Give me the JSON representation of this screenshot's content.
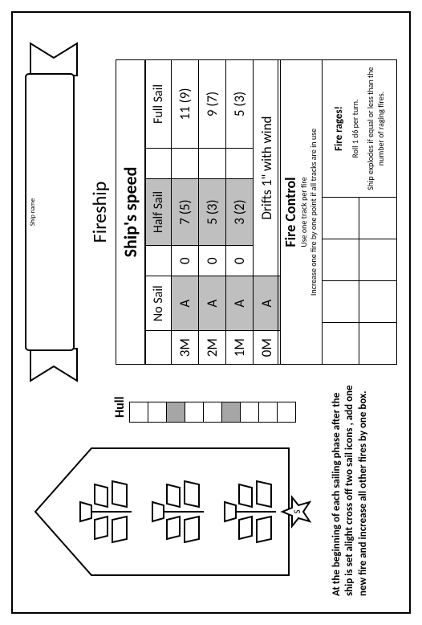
{
  "banner": {
    "field_label": "Ship name",
    "ship_type": "Fireship"
  },
  "hull": {
    "label": "Hull",
    "cells": 9,
    "shaded_indices": [
      3,
      6
    ]
  },
  "speed": {
    "title": "Ship's speed",
    "columns": [
      "",
      "No Sail",
      "",
      "Half Sail",
      "",
      "Full Sail"
    ],
    "col_widths": [
      "11%",
      "18%",
      "10%",
      "22%",
      "10%",
      "29%"
    ],
    "rows": [
      {
        "label": "3M",
        "a": "A",
        "nosail": "0",
        "half": "7 (5)",
        "blank": "",
        "full": "11 (9)"
      },
      {
        "label": "2M",
        "a": "A",
        "nosail": "0",
        "half": "5 (3)",
        "blank": "",
        "full": "9 (7)"
      },
      {
        "label": "1M",
        "a": "A",
        "nosail": "0",
        "half": "3 (2)",
        "blank": "",
        "full": "5 (3)"
      }
    ],
    "zero_row_label": "0M",
    "zero_row_a": "A",
    "drift": "Drifts 1\" with wind"
  },
  "fire": {
    "title": "Fire Control",
    "subtitle_1": "Use one track per fire",
    "subtitle_2": "Increase one fire by one point if all tracks are in use",
    "rages_title": "Fire rages!",
    "rages_line_1": "Roll 1 d6 per turn.",
    "rages_line_2": "Ship explodes if equal or less than the number of raging fires.",
    "grid_cols": 4,
    "grid_rows": 2
  },
  "instructions": "At the beginning of each sailing phase after the ship is set alight cross off two sail icons , add one new fire and increase all other fires by one box.",
  "ship_star_label": "S",
  "colors": {
    "cell_shade": "#a6a6a6",
    "speed_shade": "#bfbfbf",
    "line": "#000000"
  }
}
